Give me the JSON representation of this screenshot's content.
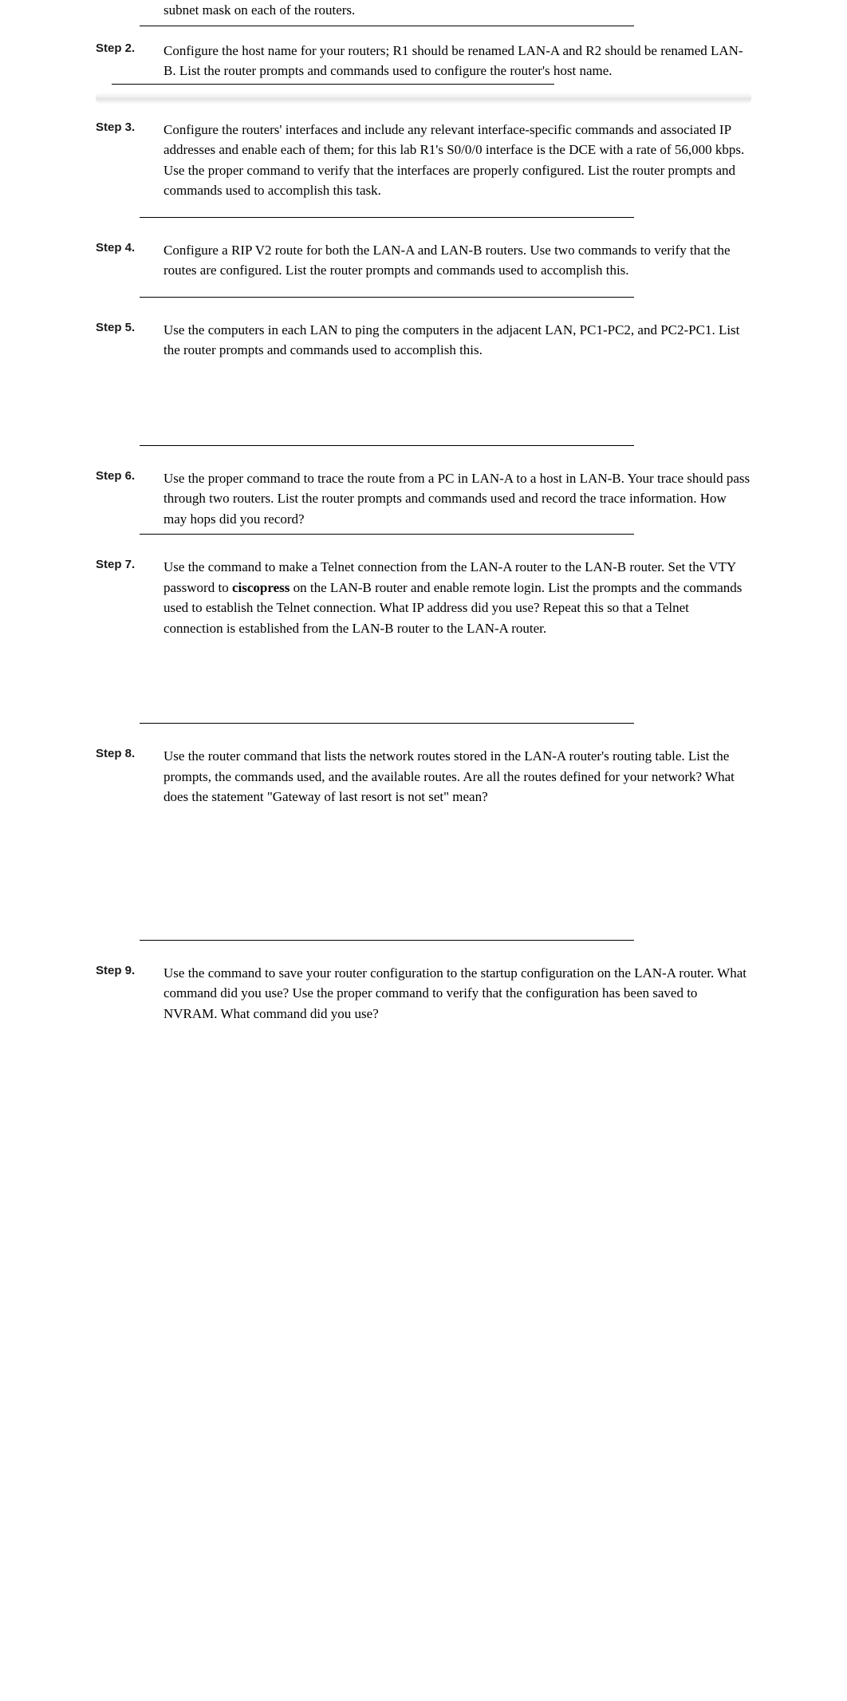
{
  "topFragment": "subnet mask on each of the routers.",
  "steps": [
    {
      "label": "Step 2.",
      "text": "Configure the host name for your routers; R1 should be renamed LAN-A and R2 should be renamed LAN-B. List the router prompts and commands used to configure the router's host name."
    },
    {
      "label": "Step 3.",
      "text": "Configure the routers' interfaces and include any relevant interface-specific commands and associated IP addresses and enable each of them; for this lab R1's S0/0/0 interface is the DCE with a rate of 56,000 kbps. Use the proper command to verify that the interfaces are properly configured. List the router prompts and commands used to accomplish this task."
    },
    {
      "label": "Step 4.",
      "text": "Configure a RIP V2 route for both the LAN-A and LAN-B routers. Use two commands to verify that the routes are configured. List the router prompts and commands used to accomplish this."
    },
    {
      "label": "Step 5.",
      "text": "Use the computers in each LAN to ping the computers in the adjacent LAN, PC1-PC2, and PC2-PC1. List the router prompts and commands used to accomplish this."
    },
    {
      "label": "Step 6.",
      "text": "Use the proper command to trace the route from a PC in LAN-A to a host in LAN-B. Your trace should pass through two routers. List the router prompts and commands used and record the trace information. How may hops did you record?"
    },
    {
      "label": "Step 7.",
      "textBefore": "Use the command to make a Telnet connection from the LAN-A router to the LAN-B router. Set the VTY password to ",
      "bold": "ciscopress",
      "textAfter": " on the LAN-B router and enable remote login. List the prompts and the commands used to establish the Telnet connection. What IP address did you use? Repeat this so that a Telnet connection is established from the LAN-B router to the LAN-A router."
    },
    {
      "label": "Step 8.",
      "text": "Use the router command that lists the network routes stored in the LAN-A router's routing table. List the prompts, the commands used, and the available routes. Are all the routes defined for your network? What does the statement \"Gateway of last resort is not set\" mean?"
    },
    {
      "label": "Step 9.",
      "text": "Use the command to save your router configuration to the startup configuration on the LAN-A router. What command did you use? Use the proper command to verify that the configuration has been saved to NVRAM. What command did you use?"
    }
  ]
}
